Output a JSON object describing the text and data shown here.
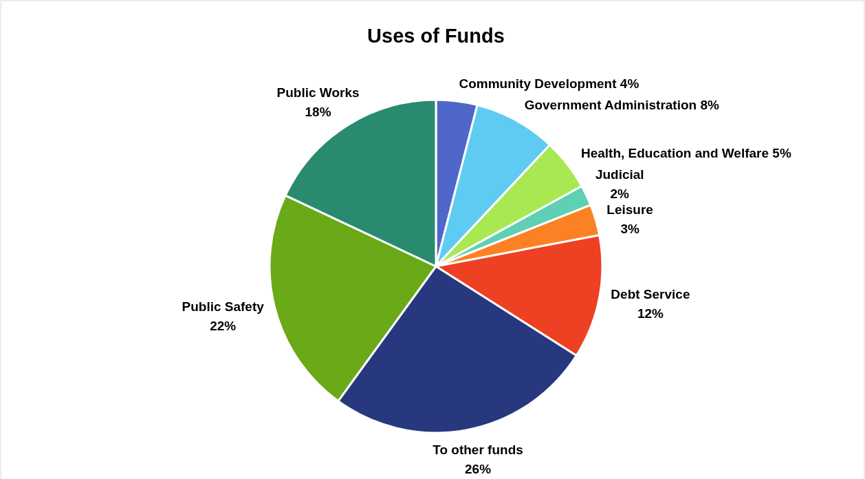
{
  "chart_data": {
    "type": "pie",
    "title": "Uses of Funds",
    "categories": [
      "Community Development",
      "Government Administration",
      "Health, Education and Welfare",
      "Judicial",
      "Leisure",
      "Debt Service",
      "To other funds",
      "Public Safety",
      "Public Works"
    ],
    "values": [
      4,
      8,
      5,
      2,
      3,
      12,
      26,
      22,
      18
    ],
    "value_labels": [
      "4%",
      "8%",
      "5%",
      "2%",
      "3%",
      "12%",
      "26%",
      "22%",
      "18%"
    ],
    "colors": [
      "#4f67c9",
      "#5fcbf3",
      "#a8e853",
      "#5fd0b4",
      "#fc8125",
      "#ee4023",
      "#27387e",
      "#6aa917",
      "#2a8a6f"
    ]
  }
}
